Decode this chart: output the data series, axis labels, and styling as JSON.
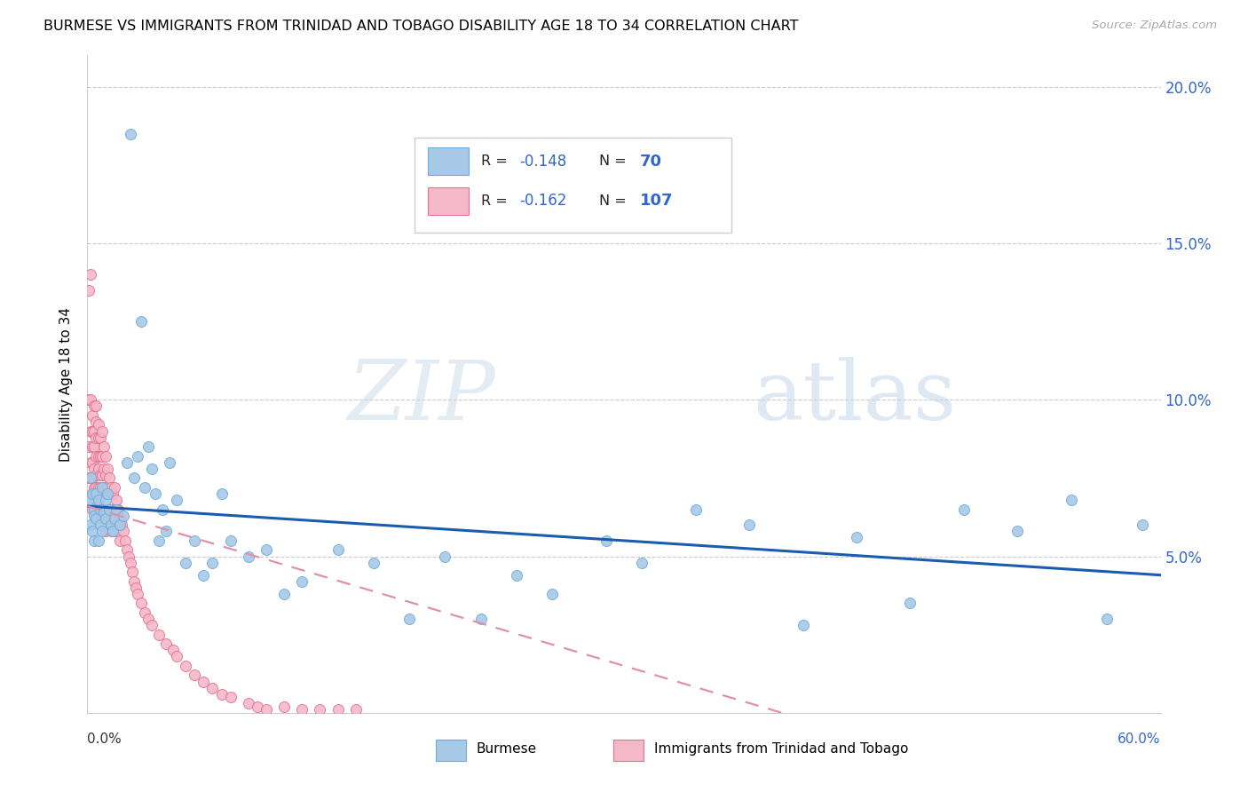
{
  "title": "BURMESE VS IMMIGRANTS FROM TRINIDAD AND TOBAGO DISABILITY AGE 18 TO 34 CORRELATION CHART",
  "source": "Source: ZipAtlas.com",
  "ylabel": "Disability Age 18 to 34",
  "yticks": [
    0.05,
    0.1,
    0.15,
    0.2
  ],
  "ytick_labels": [
    "5.0%",
    "10.0%",
    "15.0%",
    "20.0%"
  ],
  "xmin": 0.0,
  "xmax": 0.6,
  "ymin": 0.0,
  "ymax": 0.21,
  "burmese_color": "#a8c8e8",
  "burmese_edge": "#6aaed6",
  "tt_color": "#f4b8c8",
  "tt_edge": "#e87090",
  "burmese_line_color": "#1a5cb0",
  "tt_line_color": "#e090a8",
  "burmese_R": -0.148,
  "burmese_N": 70,
  "tt_R": -0.162,
  "tt_N": 107,
  "watermark": "ZIPatlas",
  "legend_label_burmese": "Burmese",
  "legend_label_tt": "Immigrants from Trinidad and Tobago",
  "burmese_line_x0": 0.0,
  "burmese_line_y0": 0.066,
  "burmese_line_x1": 0.6,
  "burmese_line_y1": 0.044,
  "tt_line_x0": 0.0,
  "tt_line_y0": 0.066,
  "tt_line_x1": 0.4,
  "tt_line_y1": -0.002,
  "burmese_scatter_x": [
    0.001,
    0.002,
    0.002,
    0.003,
    0.003,
    0.004,
    0.004,
    0.004,
    0.005,
    0.005,
    0.006,
    0.006,
    0.007,
    0.007,
    0.008,
    0.008,
    0.009,
    0.01,
    0.01,
    0.011,
    0.012,
    0.013,
    0.014,
    0.015,
    0.016,
    0.018,
    0.02,
    0.022,
    0.024,
    0.026,
    0.028,
    0.03,
    0.032,
    0.034,
    0.036,
    0.038,
    0.04,
    0.042,
    0.044,
    0.046,
    0.05,
    0.055,
    0.06,
    0.065,
    0.07,
    0.075,
    0.08,
    0.09,
    0.1,
    0.11,
    0.12,
    0.14,
    0.16,
    0.18,
    0.2,
    0.22,
    0.24,
    0.26,
    0.29,
    0.31,
    0.34,
    0.37,
    0.4,
    0.43,
    0.46,
    0.49,
    0.52,
    0.55,
    0.57,
    0.59
  ],
  "burmese_scatter_y": [
    0.068,
    0.075,
    0.06,
    0.07,
    0.058,
    0.065,
    0.063,
    0.055,
    0.07,
    0.062,
    0.068,
    0.055,
    0.065,
    0.06,
    0.072,
    0.058,
    0.064,
    0.068,
    0.062,
    0.07,
    0.065,
    0.06,
    0.058,
    0.062,
    0.065,
    0.06,
    0.063,
    0.08,
    0.185,
    0.075,
    0.082,
    0.125,
    0.072,
    0.085,
    0.078,
    0.07,
    0.055,
    0.065,
    0.058,
    0.08,
    0.068,
    0.048,
    0.055,
    0.044,
    0.048,
    0.07,
    0.055,
    0.05,
    0.052,
    0.038,
    0.042,
    0.052,
    0.048,
    0.03,
    0.05,
    0.03,
    0.044,
    0.038,
    0.055,
    0.048,
    0.065,
    0.06,
    0.028,
    0.056,
    0.035,
    0.065,
    0.058,
    0.068,
    0.03,
    0.06
  ],
  "tt_scatter_x": [
    0.001,
    0.001,
    0.001,
    0.001,
    0.002,
    0.002,
    0.002,
    0.002,
    0.002,
    0.002,
    0.003,
    0.003,
    0.003,
    0.003,
    0.003,
    0.003,
    0.003,
    0.004,
    0.004,
    0.004,
    0.004,
    0.004,
    0.005,
    0.005,
    0.005,
    0.005,
    0.005,
    0.005,
    0.005,
    0.005,
    0.006,
    0.006,
    0.006,
    0.006,
    0.006,
    0.006,
    0.007,
    0.007,
    0.007,
    0.007,
    0.007,
    0.008,
    0.008,
    0.008,
    0.008,
    0.008,
    0.009,
    0.009,
    0.009,
    0.009,
    0.01,
    0.01,
    0.01,
    0.01,
    0.01,
    0.011,
    0.011,
    0.011,
    0.012,
    0.012,
    0.012,
    0.013,
    0.013,
    0.013,
    0.014,
    0.014,
    0.015,
    0.015,
    0.015,
    0.016,
    0.016,
    0.017,
    0.017,
    0.018,
    0.018,
    0.019,
    0.02,
    0.021,
    0.022,
    0.023,
    0.024,
    0.025,
    0.026,
    0.027,
    0.028,
    0.03,
    0.032,
    0.034,
    0.036,
    0.04,
    0.044,
    0.048,
    0.05,
    0.055,
    0.06,
    0.065,
    0.07,
    0.075,
    0.08,
    0.09,
    0.095,
    0.1,
    0.11,
    0.12,
    0.13,
    0.14,
    0.15
  ],
  "tt_scatter_y": [
    0.135,
    0.1,
    0.085,
    0.075,
    0.14,
    0.1,
    0.09,
    0.08,
    0.075,
    0.068,
    0.095,
    0.09,
    0.085,
    0.08,
    0.075,
    0.07,
    0.065,
    0.098,
    0.09,
    0.085,
    0.078,
    0.072,
    0.098,
    0.093,
    0.088,
    0.082,
    0.076,
    0.072,
    0.068,
    0.062,
    0.092,
    0.088,
    0.082,
    0.078,
    0.072,
    0.065,
    0.088,
    0.082,
    0.076,
    0.072,
    0.065,
    0.09,
    0.082,
    0.076,
    0.07,
    0.062,
    0.085,
    0.078,
    0.072,
    0.065,
    0.082,
    0.076,
    0.07,
    0.065,
    0.058,
    0.078,
    0.072,
    0.065,
    0.075,
    0.07,
    0.062,
    0.072,
    0.065,
    0.058,
    0.07,
    0.062,
    0.072,
    0.065,
    0.058,
    0.068,
    0.06,
    0.065,
    0.058,
    0.062,
    0.055,
    0.06,
    0.058,
    0.055,
    0.052,
    0.05,
    0.048,
    0.045,
    0.042,
    0.04,
    0.038,
    0.035,
    0.032,
    0.03,
    0.028,
    0.025,
    0.022,
    0.02,
    0.018,
    0.015,
    0.012,
    0.01,
    0.008,
    0.006,
    0.005,
    0.003,
    0.002,
    0.001,
    0.002,
    0.001,
    0.001,
    0.001,
    0.001
  ]
}
